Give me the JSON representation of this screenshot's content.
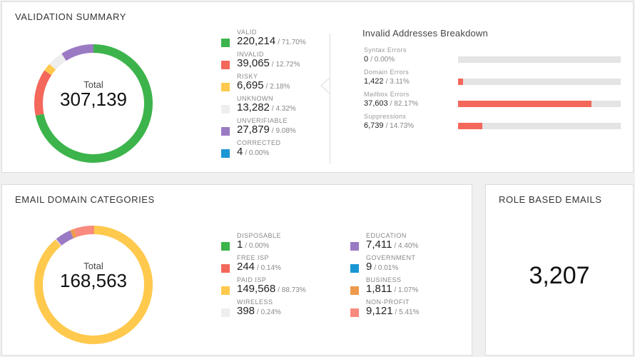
{
  "validation_summary": {
    "title": "VALIDATION SUMMARY",
    "total_label": "Total",
    "total_value": "307,139",
    "categories": [
      {
        "label": "VALID",
        "value": "220,214",
        "pct": "/ 71.70%",
        "fraction": 0.717,
        "color": "#3cb44b"
      },
      {
        "label": "INVALID",
        "value": "39,065",
        "pct": "/ 12.72%",
        "fraction": 0.1272,
        "color": "#f4675b"
      },
      {
        "label": "RISKY",
        "value": "6,695",
        "pct": "/ 2.18%",
        "fraction": 0.0218,
        "color": "#ffc94d"
      },
      {
        "label": "UNKNOWN",
        "value": "13,282",
        "pct": "/ 4.32%",
        "fraction": 0.0432,
        "color": "#eeeeee"
      },
      {
        "label": "UNVERIFIABLE",
        "value": "27,879",
        "pct": "/ 9.08%",
        "fraction": 0.0908,
        "color": "#9b7ac4"
      },
      {
        "label": "CORRECTED",
        "value": "4",
        "pct": "/ 0.00%",
        "fraction": 0.0,
        "color": "#1a96d4"
      }
    ]
  },
  "invalid_breakdown": {
    "title": "Invalid Addresses Breakdown",
    "bar_color": "#f4675b",
    "track_color": "#e4e4e4",
    "items": [
      {
        "label": "Syntax Errors",
        "value": "0",
        "pct": "/ 0.00%",
        "fraction": 0.0
      },
      {
        "label": "Domain Errors",
        "value": "1,422",
        "pct": "/ 3.11%",
        "fraction": 0.0311
      },
      {
        "label": "Mailbox Errors",
        "value": "37,603",
        "pct": "/ 82.17%",
        "fraction": 0.8217
      },
      {
        "label": "Suppressions",
        "value": "6,739",
        "pct": "/ 14.73%",
        "fraction": 0.1473
      }
    ]
  },
  "email_domain_categories": {
    "title": "EMAIL DOMAIN CATEGORIES",
    "total_label": "Total",
    "total_value": "168,563",
    "categories": [
      {
        "label": "DISPOSABLE",
        "value": "1",
        "pct": "/ 0.00%",
        "fraction": 0.0,
        "color": "#3cb44b"
      },
      {
        "label": "FREE ISP",
        "value": "244",
        "pct": "/ 0.14%",
        "fraction": 0.0014,
        "color": "#f4675b"
      },
      {
        "label": "PAID ISP",
        "value": "149,568",
        "pct": "/ 88.73%",
        "fraction": 0.8873,
        "color": "#ffc94d"
      },
      {
        "label": "WIRELESS",
        "value": "398",
        "pct": "/ 0.24%",
        "fraction": 0.0024,
        "color": "#eeeeee"
      },
      {
        "label": "EDUCATION",
        "value": "7,411",
        "pct": "/ 4.40%",
        "fraction": 0.044,
        "color": "#9b7ac4"
      },
      {
        "label": "GOVERNMENT",
        "value": "9",
        "pct": "/ 0.01%",
        "fraction": 0.0001,
        "color": "#1a96d4"
      },
      {
        "label": "BUSINESS",
        "value": "1,811",
        "pct": "/ 1.07%",
        "fraction": 0.0107,
        "color": "#ee9a4d"
      },
      {
        "label": "NON-PROFIT",
        "value": "9,121",
        "pct": "/ 5.41%",
        "fraction": 0.0541,
        "color": "#f98a7e"
      }
    ]
  },
  "role_based_emails": {
    "title": "ROLE BASED EMAILS",
    "value": "3,207"
  }
}
